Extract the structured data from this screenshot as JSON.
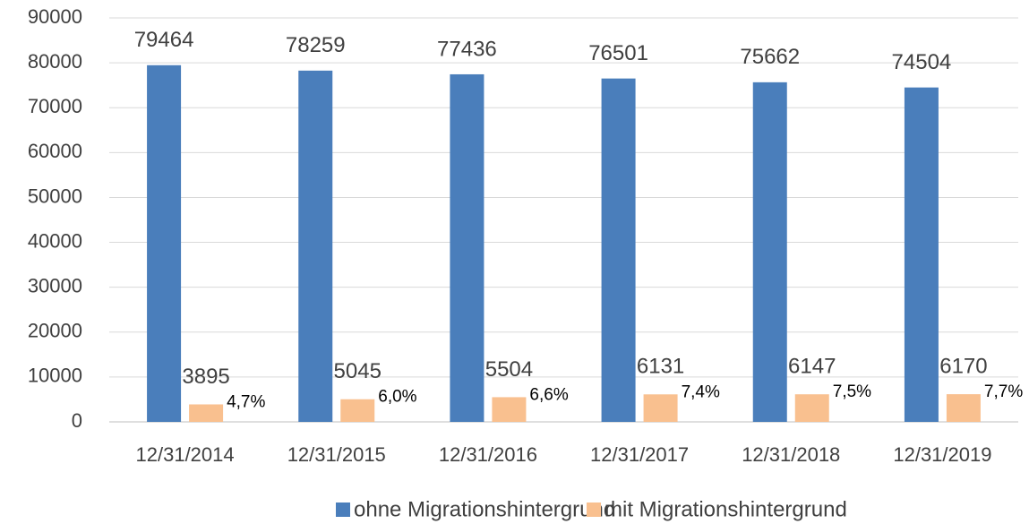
{
  "chart_data": {
    "type": "bar",
    "categories": [
      "12/31/2014",
      "12/31/2015",
      "12/31/2016",
      "12/31/2017",
      "12/31/2018",
      "12/31/2019"
    ],
    "series": [
      {
        "name": "ohne Migrationshintergrund",
        "color": "#4a7ebb",
        "values": [
          79464,
          78259,
          77436,
          76501,
          75662,
          74504
        ]
      },
      {
        "name": "mit Migrationshintergrund",
        "color": "#f9c08f",
        "values": [
          3895,
          5045,
          5504,
          6131,
          6147,
          6170
        ]
      }
    ],
    "annotations": [
      "4,7%",
      "6,0%",
      "6,6%",
      "7,4%",
      "7,5%",
      "7,7%"
    ],
    "ylim": [
      0,
      90000
    ],
    "yticks": [
      0,
      10000,
      20000,
      30000,
      40000,
      50000,
      60000,
      70000,
      80000,
      90000
    ],
    "grid": true,
    "legend": "bottom"
  }
}
